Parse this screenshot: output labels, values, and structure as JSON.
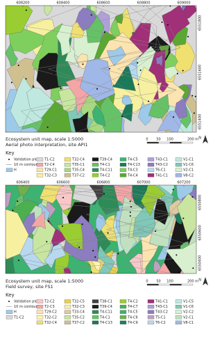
{
  "maps": [
    {
      "x_ticks": [
        "608200",
        "608400",
        "608600",
        "608800",
        "609000"
      ],
      "y_ticks": [
        "6551800",
        "6551600",
        "6551400"
      ],
      "title": "Ecosystem unit map, scale 1:5000",
      "subtitle": "Aerial photo interpretation, site API1",
      "scale_bar": [
        "0",
        "50",
        "100",
        "200 m"
      ],
      "north": "N",
      "key_title": "Key",
      "legend": [
        [
          {
            "label": "Validation plot",
            "color": "#000000",
            "symbol": "dot"
          },
          {
            "label": "10 m contour",
            "color": "#888888",
            "symbol": "line"
          },
          {
            "label": "H",
            "color": "#9ecae9",
            "symbol": "box"
          }
        ],
        [
          {
            "label": "T1-C2",
            "color": "#d9d9d9"
          },
          {
            "label": "T2-C4",
            "color": "#f4a6a6"
          },
          {
            "label": "T29-C1",
            "color": "#fce4b0"
          },
          {
            "label": "T32-C3",
            "color": "#f7f0a0"
          }
        ],
        [
          {
            "label": "T32-C4",
            "color": "#f0e070"
          },
          {
            "label": "T35-C1",
            "color": "#c8e6a0"
          },
          {
            "label": "T35-C4",
            "color": "#a8d880"
          },
          {
            "label": "T37-C2",
            "color": "#d0c090"
          }
        ],
        [
          {
            "label": "T39-C4",
            "color": "#1a1a1a"
          },
          {
            "label": "T4-C1",
            "color": "#66c266"
          },
          {
            "label": "T4-C11",
            "color": "#2e8b57"
          },
          {
            "label": "T4-C2",
            "color": "#9acd32"
          }
        ],
        [
          {
            "label": "T4-C5",
            "color": "#3cb371"
          },
          {
            "label": "T4-C13",
            "color": "#1b7a5a"
          },
          {
            "label": "T4-C3",
            "color": "#7fcf5f"
          },
          {
            "label": "T4-C4",
            "color": "#5aa832"
          }
        ],
        [
          {
            "label": "T43-C1",
            "color": "#b0a0d8"
          },
          {
            "label": "T43-C2",
            "color": "#8c7cc0"
          },
          {
            "label": "T6-C1",
            "color": "#b8d8f0"
          },
          {
            "label": "T41-C1",
            "color": "#a03078"
          }
        ],
        [
          {
            "label": "V1-C1",
            "color": "#bfe8e0"
          },
          {
            "label": "V1-C6",
            "color": "#80c8b8"
          },
          {
            "label": "V2-C1",
            "color": "#d8f0d0"
          },
          {
            "label": "V8-C2",
            "color": "#a0b8e8"
          }
        ]
      ]
    },
    {
      "x_ticks": [
        "606400",
        "606600",
        "606800",
        "607000",
        "607200"
      ],
      "y_ticks": [
        "6550800",
        "6550600",
        "6550400"
      ],
      "title": "Ecosystem unit map, scale 1:5000",
      "subtitle": "Field survey, site FS1",
      "scale_bar": [
        "0",
        "50",
        "100",
        "200 m"
      ],
      "north": "N",
      "key_title": "Key",
      "legend": [
        [
          {
            "label": "Validation plot",
            "color": "#000000",
            "symbol": "dot"
          },
          {
            "label": "10 m contour",
            "color": "#888888",
            "symbol": "line"
          },
          {
            "label": "H",
            "color": "#9ecae9",
            "symbol": "box"
          },
          {
            "label": "T1-C2",
            "color": "#d9d9d9",
            "symbol": "box"
          }
        ],
        [
          {
            "label": "T2-C2",
            "color": "#f8c8c8"
          },
          {
            "label": "T2-C3",
            "color": "#f4a6a6"
          },
          {
            "label": "T29-C2",
            "color": "#fce4b0"
          },
          {
            "label": "T32-C2",
            "color": "#fff3b0"
          },
          {
            "label": "T32-C4",
            "color": "#f0e070"
          }
        ],
        [
          {
            "label": "T32-C5",
            "color": "#e8d050"
          },
          {
            "label": "T32-C3",
            "color": "#f7f0a0"
          },
          {
            "label": "T33-C4",
            "color": "#e0c8a0"
          },
          {
            "label": "T35-C2",
            "color": "#c8e6a0"
          },
          {
            "label": "T37-C2",
            "color": "#d0c090"
          }
        ],
        [
          {
            "label": "T38-C1",
            "color": "#404040"
          },
          {
            "label": "T39-C4",
            "color": "#1a1a1a"
          },
          {
            "label": "T4-C11",
            "color": "#2e8b57"
          },
          {
            "label": "T4-C1",
            "color": "#66c266"
          },
          {
            "label": "T4-C13",
            "color": "#1b7a5a"
          }
        ],
        [
          {
            "label": "T4-C2",
            "color": "#9acd32"
          },
          {
            "label": "T4-C7",
            "color": "#4caf50"
          },
          {
            "label": "T4-C5",
            "color": "#3cb371"
          },
          {
            "label": "T4-C6",
            "color": "#70b050"
          },
          {
            "label": "T4-C9",
            "color": "#208060"
          }
        ],
        [
          {
            "label": "T41-C1",
            "color": "#a03078"
          },
          {
            "label": "T43-C1",
            "color": "#b0a0d8"
          },
          {
            "label": "T43-C2",
            "color": "#8c7cc0"
          },
          {
            "label": "T5-C1",
            "color": "#c0a0c0"
          },
          {
            "label": "T6-C2",
            "color": "#b8d8f0"
          }
        ],
        [
          {
            "label": "V1-C5",
            "color": "#bfe8e0"
          },
          {
            "label": "V1-C6",
            "color": "#80c8b8"
          },
          {
            "label": "V2-C2",
            "color": "#d8f0d0"
          },
          {
            "label": "V2-C1",
            "color": "#c0e0c0"
          },
          {
            "label": "V8-C1",
            "color": "#a0b8e8"
          }
        ]
      ]
    }
  ]
}
